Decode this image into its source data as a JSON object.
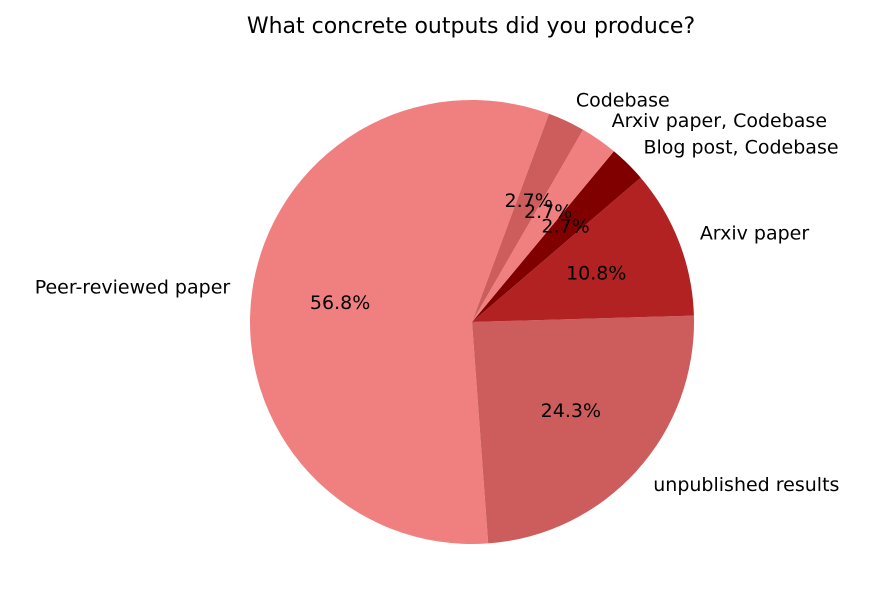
{
  "chart_data": {
    "type": "pie",
    "title": "What concrete outputs did you produce?",
    "categories": [
      "Peer-reviewed paper",
      "unpublished results",
      "Arxiv paper",
      "Blog post, Codebase",
      "Arxiv paper, Codebase",
      "Codebase"
    ],
    "values": [
      56.8,
      24.3,
      10.8,
      2.7,
      2.7,
      2.7
    ],
    "value_labels": [
      "56.8%",
      "24.3%",
      "10.8%",
      "2.7%",
      "2.7%",
      "2.7%"
    ],
    "colors": [
      "#f08080",
      "#cd5c5c",
      "#b22222",
      "#800000",
      "#f08080",
      "#cd5c5c"
    ]
  }
}
